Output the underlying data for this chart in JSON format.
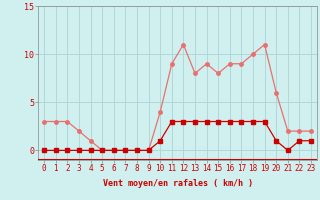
{
  "hours": [
    0,
    1,
    2,
    3,
    4,
    5,
    6,
    7,
    8,
    9,
    10,
    11,
    12,
    13,
    14,
    15,
    16,
    17,
    18,
    19,
    20,
    21,
    22,
    23
  ],
  "wind_avg": [
    0,
    0,
    0,
    0,
    0,
    0,
    0,
    0,
    0,
    0,
    1,
    3,
    3,
    3,
    3,
    3,
    3,
    3,
    3,
    3,
    1,
    0,
    1,
    1
  ],
  "wind_gust": [
    3,
    3,
    3,
    2,
    1,
    0,
    0,
    0,
    0,
    0,
    4,
    9,
    11,
    8,
    9,
    8,
    9,
    9,
    10,
    11,
    6,
    2,
    2,
    2
  ],
  "color_avg": "#cc0000",
  "color_gust": "#e87070",
  "bg_color": "#d0f0f0",
  "grid_color": "#b0d8d8",
  "xlabel": "Vent moyen/en rafales ( km/h )",
  "ylabel_ticks": [
    0,
    5,
    10,
    15
  ],
  "xlim": [
    -0.5,
    23.5
  ],
  "ylim": [
    -1,
    15
  ]
}
